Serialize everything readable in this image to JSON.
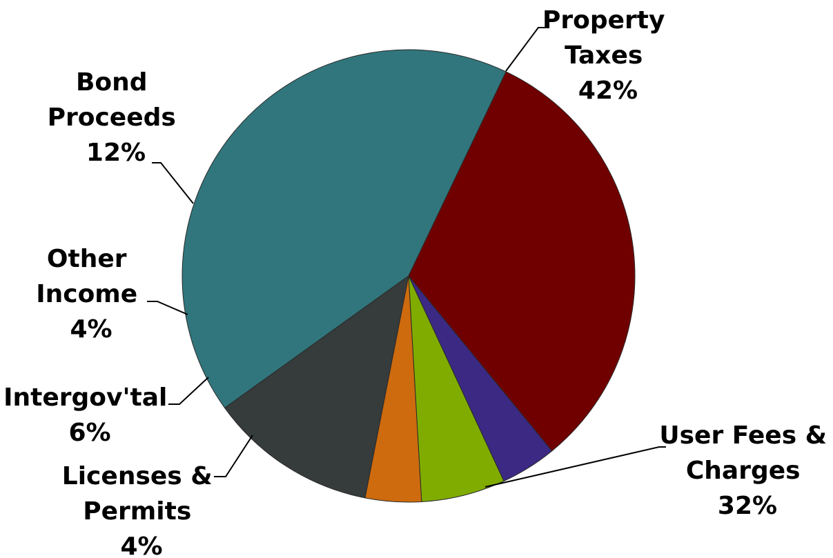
{
  "chart_data": {
    "type": "pie",
    "start_angle_deg": 234.3,
    "slices": [
      {
        "label_lines": [
          "Property",
          "Taxes"
        ],
        "percent_label": "42%",
        "value": 42,
        "color": "#31767C"
      },
      {
        "label_lines": [
          "User Fees &",
          "Charges"
        ],
        "percent_label": "32%",
        "value": 32,
        "color": "#700000"
      },
      {
        "label_lines": [
          "Licenses &",
          "Permits"
        ],
        "percent_label": "4%",
        "value": 4,
        "color": "#3B2984"
      },
      {
        "label_lines": [
          "Intergov'tal"
        ],
        "percent_label": "6%",
        "value": 6,
        "color": "#80AC00"
      },
      {
        "label_lines": [
          "Other",
          "Income"
        ],
        "percent_label": "4%",
        "value": 4,
        "color": "#CD6B0E"
      },
      {
        "label_lines": [
          "Bond",
          "Proceeds"
        ],
        "percent_label": "12%",
        "value": 12,
        "color": "#363B3C"
      }
    ]
  }
}
